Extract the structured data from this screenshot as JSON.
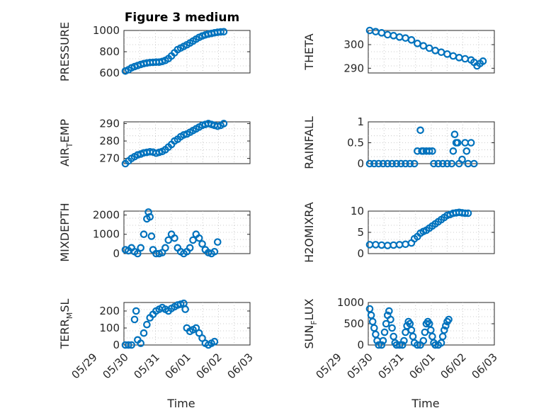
{
  "figure": {
    "title": "Figure 3 medium",
    "marker_color": "#0072BD",
    "xlabel": "Time",
    "x_ticks": [
      "05/29",
      "05/30",
      "05/31",
      "06/01",
      "06/02",
      "06/03"
    ]
  },
  "chart_data": [
    {
      "type": "scatter",
      "ylabel": "PRESSURE",
      "ylim": [
        600,
        1000
      ],
      "y_ticks": [
        "600",
        "800",
        "1000"
      ],
      "y_tick_values": [
        600,
        800,
        1000
      ],
      "grid": true,
      "points": [
        [
          0.0,
          618
        ],
        [
          0.1,
          630
        ],
        [
          0.2,
          648
        ],
        [
          0.3,
          660
        ],
        [
          0.4,
          670
        ],
        [
          0.5,
          680
        ],
        [
          0.6,
          688
        ],
        [
          0.7,
          694
        ],
        [
          0.8,
          698
        ],
        [
          0.9,
          700
        ],
        [
          1.0,
          702
        ],
        [
          1.1,
          702
        ],
        [
          1.2,
          708
        ],
        [
          1.3,
          718
        ],
        [
          1.4,
          735
        ],
        [
          1.5,
          760
        ],
        [
          1.6,
          790
        ],
        [
          1.7,
          820
        ],
        [
          1.8,
          835
        ],
        [
          1.9,
          850
        ],
        [
          2.0,
          865
        ],
        [
          2.1,
          882
        ],
        [
          2.2,
          900
        ],
        [
          2.3,
          918
        ],
        [
          2.4,
          935
        ],
        [
          2.5,
          948
        ],
        [
          2.6,
          958
        ],
        [
          2.7,
          966
        ],
        [
          2.8,
          972
        ],
        [
          2.9,
          978
        ],
        [
          3.0,
          983
        ],
        [
          3.1,
          986
        ],
        [
          3.2,
          988
        ]
      ]
    },
    {
      "type": "scatter",
      "ylabel": "THETA",
      "ylim": [
        288,
        306
      ],
      "y_ticks": [
        "290",
        "300"
      ],
      "y_tick_values": [
        290,
        300
      ],
      "grid": true,
      "points": [
        [
          0.0,
          306
        ],
        [
          0.2,
          305.5
        ],
        [
          0.4,
          305
        ],
        [
          0.6,
          304.2
        ],
        [
          0.8,
          303.8
        ],
        [
          1.0,
          303.2
        ],
        [
          1.2,
          302.8
        ],
        [
          1.4,
          302
        ],
        [
          1.6,
          300.5
        ],
        [
          1.8,
          299.5
        ],
        [
          2.0,
          298.5
        ],
        [
          2.2,
          297.5
        ],
        [
          2.4,
          296.8
        ],
        [
          2.6,
          296
        ],
        [
          2.8,
          295.2
        ],
        [
          3.0,
          294.5
        ],
        [
          3.2,
          294
        ],
        [
          3.4,
          293.5
        ],
        [
          3.5,
          292.5
        ],
        [
          3.6,
          291
        ],
        [
          3.7,
          292
        ],
        [
          3.8,
          293
        ]
      ]
    },
    {
      "type": "scatter",
      "ylabel": "AIR_TEMP",
      "ylim": [
        267,
        291
      ],
      "y_ticks": [
        "270",
        "280",
        "290"
      ],
      "y_tick_values": [
        270,
        280,
        290
      ],
      "grid": true,
      "points": [
        [
          0.0,
          267
        ],
        [
          0.1,
          268.5
        ],
        [
          0.2,
          270
        ],
        [
          0.3,
          271
        ],
        [
          0.4,
          272
        ],
        [
          0.5,
          272.5
        ],
        [
          0.6,
          273.2
        ],
        [
          0.7,
          273.5
        ],
        [
          0.8,
          273.8
        ],
        [
          0.9,
          273.6
        ],
        [
          1.0,
          273
        ],
        [
          1.1,
          273.5
        ],
        [
          1.2,
          274
        ],
        [
          1.3,
          275
        ],
        [
          1.4,
          276.5
        ],
        [
          1.5,
          278
        ],
        [
          1.6,
          280
        ],
        [
          1.7,
          281
        ],
        [
          1.8,
          282.5
        ],
        [
          1.9,
          283.5
        ],
        [
          2.0,
          284
        ],
        [
          2.1,
          285
        ],
        [
          2.2,
          286
        ],
        [
          2.3,
          287
        ],
        [
          2.4,
          288
        ],
        [
          2.5,
          289
        ],
        [
          2.6,
          289.5
        ],
        [
          2.7,
          290
        ],
        [
          2.8,
          289.5
        ],
        [
          2.9,
          289
        ],
        [
          3.0,
          288.5
        ],
        [
          3.1,
          289
        ],
        [
          3.2,
          290
        ]
      ]
    },
    {
      "type": "scatter",
      "ylabel": "RAINFALL",
      "ylim": [
        0,
        1
      ],
      "y_ticks": [
        "0",
        "0.5",
        "1"
      ],
      "y_tick_values": [
        0,
        0.5,
        1
      ],
      "grid": true,
      "points": [
        [
          0.0,
          0
        ],
        [
          0.15,
          0
        ],
        [
          0.3,
          0
        ],
        [
          0.45,
          0
        ],
        [
          0.6,
          0
        ],
        [
          0.75,
          0
        ],
        [
          0.9,
          0
        ],
        [
          1.05,
          0
        ],
        [
          1.2,
          0
        ],
        [
          1.35,
          0
        ],
        [
          1.5,
          0
        ],
        [
          1.6,
          0.3
        ],
        [
          1.7,
          0.8
        ],
        [
          1.75,
          0.3
        ],
        [
          1.8,
          0.3
        ],
        [
          1.9,
          0.3
        ],
        [
          2.0,
          0.3
        ],
        [
          2.1,
          0.3
        ],
        [
          2.15,
          0
        ],
        [
          2.3,
          0
        ],
        [
          2.45,
          0
        ],
        [
          2.6,
          0
        ],
        [
          2.75,
          0
        ],
        [
          2.8,
          0.3
        ],
        [
          2.85,
          0.7
        ],
        [
          2.9,
          0.5
        ],
        [
          2.95,
          0.5
        ],
        [
          3.0,
          0
        ],
        [
          3.1,
          0.1
        ],
        [
          3.2,
          0.5
        ],
        [
          3.25,
          0.3
        ],
        [
          3.3,
          0
        ],
        [
          3.4,
          0.5
        ],
        [
          3.5,
          0
        ]
      ]
    },
    {
      "type": "scatter",
      "ylabel": "MIXDEPTH",
      "ylim": [
        0,
        2200
      ],
      "y_ticks": [
        "0",
        "1000",
        "2000"
      ],
      "y_tick_values": [
        0,
        1000,
        2000
      ],
      "grid": true,
      "points": [
        [
          0.0,
          200
        ],
        [
          0.1,
          150
        ],
        [
          0.2,
          300
        ],
        [
          0.3,
          100
        ],
        [
          0.4,
          0
        ],
        [
          0.5,
          300
        ],
        [
          0.6,
          1000
        ],
        [
          0.7,
          1800
        ],
        [
          0.75,
          2150
        ],
        [
          0.8,
          1900
        ],
        [
          0.85,
          900
        ],
        [
          0.9,
          200
        ],
        [
          1.0,
          0
        ],
        [
          1.1,
          0
        ],
        [
          1.2,
          50
        ],
        [
          1.3,
          300
        ],
        [
          1.4,
          700
        ],
        [
          1.5,
          1000
        ],
        [
          1.6,
          800
        ],
        [
          1.7,
          300
        ],
        [
          1.8,
          100
        ],
        [
          1.9,
          0
        ],
        [
          2.0,
          100
        ],
        [
          2.1,
          300
        ],
        [
          2.2,
          700
        ],
        [
          2.3,
          1000
        ],
        [
          2.4,
          800
        ],
        [
          2.5,
          500
        ],
        [
          2.6,
          200
        ],
        [
          2.7,
          50
        ],
        [
          2.8,
          0
        ],
        [
          2.9,
          100
        ],
        [
          3.0,
          600
        ]
      ]
    },
    {
      "type": "scatter",
      "ylabel": "H2OMIXRA",
      "ylim": [
        0,
        10
      ],
      "y_ticks": [
        "0",
        "5",
        "10"
      ],
      "y_tick_values": [
        0,
        5,
        10
      ],
      "grid": true,
      "points": [
        [
          0.0,
          2.1
        ],
        [
          0.2,
          2.1
        ],
        [
          0.4,
          2
        ],
        [
          0.6,
          1.9
        ],
        [
          0.8,
          2
        ],
        [
          1.0,
          2.1
        ],
        [
          1.2,
          2.2
        ],
        [
          1.4,
          2.5
        ],
        [
          1.5,
          3.5
        ],
        [
          1.6,
          4
        ],
        [
          1.7,
          4.8
        ],
        [
          1.8,
          5.2
        ],
        [
          1.9,
          5.5
        ],
        [
          2.0,
          6
        ],
        [
          2.1,
          6.5
        ],
        [
          2.2,
          7
        ],
        [
          2.3,
          7.5
        ],
        [
          2.4,
          8
        ],
        [
          2.5,
          8.5
        ],
        [
          2.6,
          9
        ],
        [
          2.7,
          9.2
        ],
        [
          2.8,
          9.5
        ],
        [
          2.9,
          9.6
        ],
        [
          3.0,
          9.7
        ],
        [
          3.1,
          9.6
        ],
        [
          3.2,
          9.5
        ],
        [
          3.3,
          9.5
        ]
      ]
    },
    {
      "type": "scatter",
      "ylabel": "TERR_MSL",
      "ylim": [
        0,
        250
      ],
      "y_ticks": [
        "0",
        "100",
        "200"
      ],
      "y_tick_values": [
        0,
        100,
        200
      ],
      "grid": true,
      "points": [
        [
          0.0,
          0
        ],
        [
          0.1,
          0
        ],
        [
          0.2,
          0
        ],
        [
          0.3,
          150
        ],
        [
          0.35,
          200
        ],
        [
          0.4,
          30
        ],
        [
          0.5,
          10
        ],
        [
          0.6,
          70
        ],
        [
          0.7,
          120
        ],
        [
          0.8,
          160
        ],
        [
          0.9,
          180
        ],
        [
          1.0,
          200
        ],
        [
          1.1,
          210
        ],
        [
          1.2,
          220
        ],
        [
          1.3,
          210
        ],
        [
          1.4,
          200
        ],
        [
          1.5,
          215
        ],
        [
          1.6,
          225
        ],
        [
          1.7,
          235
        ],
        [
          1.8,
          240
        ],
        [
          1.9,
          245
        ],
        [
          1.95,
          210
        ],
        [
          2.0,
          100
        ],
        [
          2.1,
          80
        ],
        [
          2.2,
          90
        ],
        [
          2.3,
          100
        ],
        [
          2.4,
          70
        ],
        [
          2.5,
          40
        ],
        [
          2.6,
          10
        ],
        [
          2.7,
          0
        ],
        [
          2.8,
          10
        ],
        [
          2.9,
          20
        ]
      ]
    },
    {
      "type": "scatter",
      "ylabel": "SUN_FLUX",
      "ylim": [
        0,
        1000
      ],
      "y_ticks": [
        "0",
        "500",
        "1000"
      ],
      "y_tick_values": [
        0,
        500,
        1000
      ],
      "grid": true,
      "points": [
        [
          0.0,
          850
        ],
        [
          0.05,
          700
        ],
        [
          0.1,
          550
        ],
        [
          0.15,
          400
        ],
        [
          0.2,
          250
        ],
        [
          0.25,
          100
        ],
        [
          0.3,
          0
        ],
        [
          0.4,
          0
        ],
        [
          0.45,
          100
        ],
        [
          0.5,
          300
        ],
        [
          0.55,
          500
        ],
        [
          0.6,
          700
        ],
        [
          0.65,
          800
        ],
        [
          0.7,
          600
        ],
        [
          0.75,
          400
        ],
        [
          0.8,
          200
        ],
        [
          0.85,
          50
        ],
        [
          0.9,
          0
        ],
        [
          1.0,
          0
        ],
        [
          1.1,
          0
        ],
        [
          1.15,
          100
        ],
        [
          1.2,
          300
        ],
        [
          1.25,
          450
        ],
        [
          1.3,
          550
        ],
        [
          1.35,
          500
        ],
        [
          1.4,
          350
        ],
        [
          1.45,
          200
        ],
        [
          1.5,
          50
        ],
        [
          1.6,
          0
        ],
        [
          1.7,
          0
        ],
        [
          1.8,
          100
        ],
        [
          1.85,
          300
        ],
        [
          1.9,
          500
        ],
        [
          1.95,
          550
        ],
        [
          2.0,
          500
        ],
        [
          2.05,
          350
        ],
        [
          2.1,
          200
        ],
        [
          2.15,
          50
        ],
        [
          2.2,
          0
        ],
        [
          2.3,
          0
        ],
        [
          2.4,
          50
        ],
        [
          2.45,
          200
        ],
        [
          2.5,
          350
        ],
        [
          2.55,
          450
        ],
        [
          2.6,
          550
        ],
        [
          2.65,
          600
        ]
      ]
    }
  ]
}
